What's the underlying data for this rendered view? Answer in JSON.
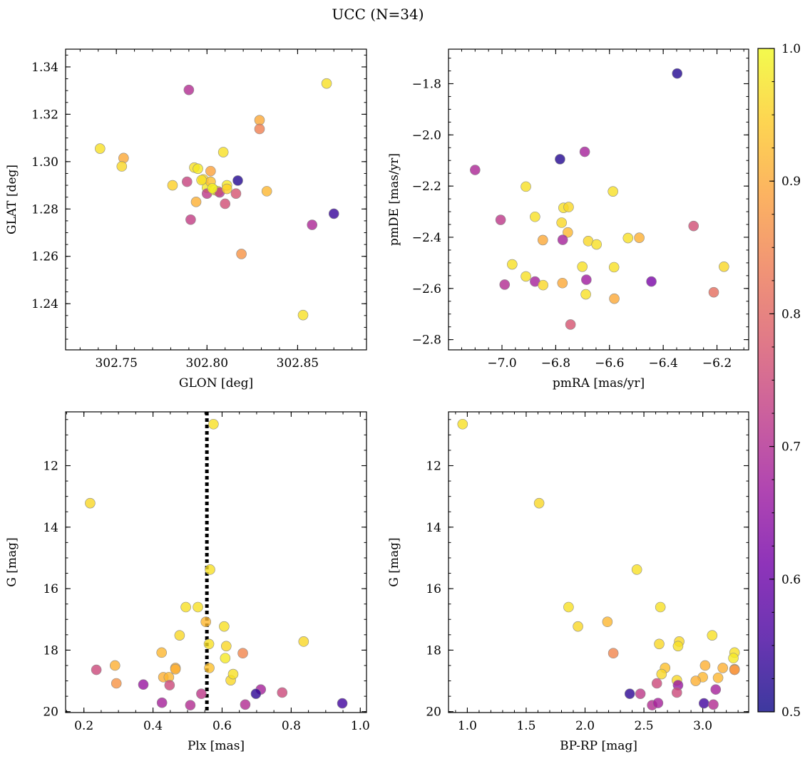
{
  "figure": {
    "title": "UCC (N=34)"
  },
  "colorbar": {
    "range": [
      0.5,
      1.0
    ],
    "ticks": [
      "0.5",
      "0.6",
      "0.7",
      "0.8",
      "0.9",
      "1.0"
    ],
    "colormap": [
      "#0d0887",
      "#46039f",
      "#7201a8",
      "#9c179e",
      "#bd3786",
      "#d8576b",
      "#ed7953",
      "#fb9f3a",
      "#fdca26",
      "#f0f921"
    ]
  },
  "chart_data": [
    {
      "id": "glon-glat",
      "type": "scatter",
      "xlabel": "GLON [deg]",
      "ylabel": "GLAT [deg]",
      "xlim": [
        302.722,
        302.888
      ],
      "ylim": [
        1.2205,
        1.3475
      ],
      "invert_y": false,
      "xticks": [
        302.75,
        302.8,
        302.85
      ],
      "xtick_labels": [
        "302.75",
        "302.80",
        "302.85"
      ],
      "yticks": [
        1.24,
        1.26,
        1.28,
        1.3,
        1.32,
        1.34
      ],
      "ytick_labels": [
        "1.24",
        "1.26",
        "1.28",
        "1.30",
        "1.32",
        "1.34"
      ],
      "xminor": 0.01,
      "yminor": 0.005,
      "x": [
        302.741,
        302.754,
        302.753,
        302.781,
        302.789,
        302.79,
        302.791,
        302.793,
        302.795,
        302.794,
        302.798,
        302.8,
        302.8,
        302.802,
        302.802,
        302.804,
        302.806,
        302.807,
        302.809,
        302.81,
        302.811,
        302.811,
        302.816,
        302.817,
        302.819,
        302.829,
        302.829,
        302.833,
        302.853,
        302.858,
        302.866,
        302.87,
        302.797,
        302.803
      ],
      "y": [
        1.3055,
        1.3015,
        1.298,
        1.29,
        1.2915,
        1.3303,
        1.2755,
        1.2975,
        1.297,
        1.283,
        1.2925,
        1.289,
        1.2865,
        1.296,
        1.2915,
        1.288,
        1.2875,
        1.287,
        1.304,
        1.2822,
        1.29,
        1.2885,
        1.2865,
        1.292,
        1.261,
        1.3175,
        1.3138,
        1.2875,
        1.2352,
        1.2733,
        1.333,
        1.278,
        1.2922,
        1.2887
      ],
      "c": [
        0.97,
        0.9,
        0.96,
        0.95,
        0.74,
        0.7,
        0.73,
        0.97,
        0.98,
        0.91,
        0.96,
        0.98,
        0.72,
        0.89,
        0.93,
        0.98,
        0.96,
        0.71,
        0.97,
        0.76,
        0.98,
        0.95,
        0.77,
        0.52,
        0.87,
        0.9,
        0.84,
        0.92,
        0.97,
        0.69,
        0.97,
        0.54,
        0.97,
        0.99
      ]
    },
    {
      "id": "pm",
      "type": "scatter",
      "xlabel": "pmRA [mas/yr]",
      "ylabel": "pmDE [mas/yr]",
      "xlim": [
        -7.199,
        -6.082
      ],
      "ylim": [
        -2.84,
        -1.665
      ],
      "invert_y": false,
      "xticks": [
        -7.0,
        -6.8,
        -6.6,
        -6.4,
        -6.2
      ],
      "xtick_labels": [
        "−7.0",
        "−6.8",
        "−6.6",
        "−6.4",
        "−6.2"
      ],
      "yticks": [
        -2.8,
        -2.6,
        -2.4,
        -2.2,
        -2.0,
        -1.8
      ],
      "ytick_labels": [
        "−2.8",
        "−2.6",
        "−2.4",
        "−2.2",
        "−2.0",
        "−1.8"
      ],
      "xminor": 0.05,
      "yminor": 0.05,
      "x": [
        -6.348,
        -7.1,
        -6.784,
        -6.692,
        -6.911,
        -7.005,
        -6.877,
        -6.771,
        -6.752,
        -6.778,
        -6.755,
        -6.587,
        -6.774,
        -6.848,
        -6.679,
        -6.648,
        -6.531,
        -6.489,
        -6.287,
        -6.962,
        -6.911,
        -6.99,
        -6.877,
        -6.847,
        -6.775,
        -6.701,
        -6.583,
        -6.444,
        -6.174,
        -6.212,
        -6.688,
        -6.582,
        -6.745,
        -6.686
      ],
      "y": [
        -1.76,
        -2.137,
        -2.095,
        -2.066,
        -2.202,
        -2.332,
        -2.32,
        -2.285,
        -2.282,
        -2.343,
        -2.381,
        -2.221,
        -2.41,
        -2.411,
        -2.415,
        -2.428,
        -2.403,
        -2.402,
        -2.356,
        -2.506,
        -2.553,
        -2.585,
        -2.573,
        -2.587,
        -2.579,
        -2.515,
        -2.517,
        -2.573,
        -2.515,
        -2.615,
        -2.623,
        -2.64,
        -2.741,
        -2.566
      ],
      "c": [
        0.52,
        0.69,
        0.52,
        0.68,
        0.97,
        0.72,
        0.97,
        0.97,
        0.96,
        0.96,
        0.92,
        0.97,
        0.68,
        0.9,
        0.96,
        0.97,
        0.97,
        0.91,
        0.76,
        0.97,
        0.97,
        0.7,
        0.68,
        0.96,
        0.9,
        0.97,
        0.97,
        0.62,
        0.96,
        0.81,
        0.97,
        0.9,
        0.77,
        0.67
      ]
    },
    {
      "id": "plx-g",
      "type": "scatter",
      "xlabel": "Plx [mas]",
      "ylabel": "G [mag]",
      "xlim": [
        0.147,
        1.018
      ],
      "ylim": [
        10.25,
        20.03
      ],
      "invert_y": true,
      "xticks": [
        0.2,
        0.4,
        0.6,
        0.8,
        1.0
      ],
      "xtick_labels": [
        "0.2",
        "0.4",
        "0.6",
        "0.8",
        "1.0"
      ],
      "yticks": [
        12,
        14,
        16,
        18,
        20
      ],
      "ytick_labels": [
        "12",
        "14",
        "16",
        "18",
        "20"
      ],
      "xminor": 0.05,
      "yminor": 0.5,
      "vline": 0.556,
      "x": [
        0.575,
        0.218,
        0.565,
        0.495,
        0.53,
        0.477,
        0.606,
        0.553,
        0.612,
        0.562,
        0.836,
        0.425,
        0.609,
        0.66,
        0.236,
        0.29,
        0.43,
        0.465,
        0.446,
        0.625,
        0.632,
        0.563,
        0.294,
        0.372,
        0.448,
        0.54,
        0.712,
        0.698,
        0.774,
        0.426,
        0.948,
        0.508,
        0.667,
        0.465
      ],
      "y": [
        10.65,
        13.22,
        15.38,
        16.6,
        16.6,
        17.52,
        17.23,
        17.08,
        17.87,
        17.8,
        17.72,
        18.08,
        18.26,
        18.1,
        18.64,
        18.5,
        18.88,
        18.58,
        18.88,
        18.98,
        18.78,
        18.58,
        19.08,
        19.12,
        19.14,
        19.42,
        19.28,
        19.42,
        19.38,
        19.71,
        19.73,
        19.79,
        19.77,
        18.62
      ],
      "c": [
        0.97,
        0.96,
        0.97,
        0.97,
        0.97,
        0.96,
        0.97,
        0.92,
        0.96,
        0.97,
        0.96,
        0.92,
        0.98,
        0.85,
        0.75,
        0.91,
        0.91,
        0.91,
        0.92,
        0.96,
        0.97,
        0.93,
        0.87,
        0.66,
        0.75,
        0.72,
        0.68,
        0.53,
        0.75,
        0.68,
        0.55,
        0.7,
        0.7,
        0.91
      ]
    },
    {
      "id": "bprp-g",
      "type": "scatter",
      "xlabel": "BP-RP [mag]",
      "ylabel": "G [mag]",
      "xlim": [
        0.84,
        3.39
      ],
      "ylim": [
        10.25,
        20.03
      ],
      "invert_y": true,
      "xticks": [
        1.0,
        1.5,
        2.0,
        2.5,
        3.0
      ],
      "xtick_labels": [
        "1.0",
        "1.5",
        "2.0",
        "2.5",
        "3.0"
      ],
      "yticks": [
        12,
        14,
        16,
        18,
        20
      ],
      "ytick_labels": [
        "12",
        "14",
        "16",
        "18",
        "20"
      ],
      "xminor": 0.1,
      "yminor": 0.5,
      "x": [
        0.96,
        1.61,
        2.44,
        1.86,
        2.64,
        1.94,
        2.19,
        2.63,
        2.8,
        3.08,
        2.24,
        3.27,
        2.79,
        3.26,
        2.68,
        3.02,
        3.17,
        2.65,
        3.0,
        3.13,
        3.27,
        2.78,
        2.61,
        2.79,
        3.11,
        2.78,
        2.38,
        2.47,
        2.57,
        2.62,
        3.01,
        3.09,
        3.27,
        2.94
      ],
      "y": [
        10.65,
        13.22,
        15.38,
        16.6,
        16.6,
        17.23,
        17.08,
        17.8,
        17.72,
        17.52,
        18.1,
        18.08,
        17.87,
        18.26,
        18.58,
        18.5,
        18.58,
        18.78,
        18.88,
        18.9,
        18.62,
        18.98,
        19.08,
        19.14,
        19.28,
        19.38,
        19.42,
        19.42,
        19.79,
        19.72,
        19.73,
        19.77,
        18.64,
        19.0
      ],
      "c": [
        0.97,
        0.96,
        0.97,
        0.97,
        0.97,
        0.96,
        0.92,
        0.96,
        0.96,
        0.97,
        0.85,
        0.97,
        0.97,
        0.98,
        0.93,
        0.91,
        0.91,
        0.96,
        0.92,
        0.92,
        0.91,
        0.96,
        0.75,
        0.66,
        0.68,
        0.75,
        0.53,
        0.72,
        0.7,
        0.68,
        0.55,
        0.7,
        0.87,
        0.91
      ]
    }
  ]
}
